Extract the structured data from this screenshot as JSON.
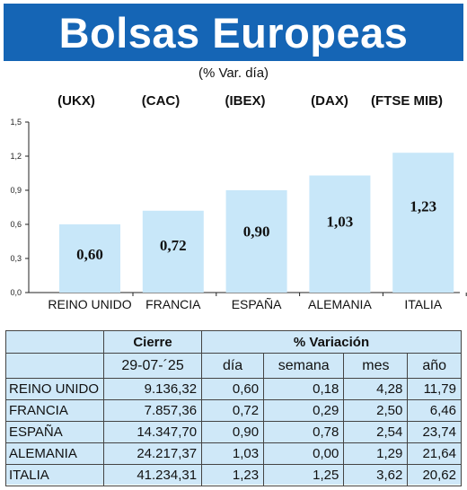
{
  "title": "Bolsas Europeas",
  "subtitle": "(% Var. día)",
  "indices": [
    "(UKX)",
    "(CAC)",
    "(IBEX)",
    "(DAX)",
    "(FTSE MIB)"
  ],
  "chart_data": {
    "type": "bar",
    "categories": [
      "REINO UNIDO",
      "FRANCIA",
      "ESPAÑA",
      "ALEMANIA",
      "ITALIA"
    ],
    "values": [
      0.6,
      0.72,
      0.9,
      1.03,
      1.23
    ],
    "value_labels": [
      "0,60",
      "0,72",
      "0,90",
      "1,03",
      "1,23"
    ],
    "yticks": [
      "0,0",
      "0,3",
      "0,6",
      "0,9",
      "1,2",
      "1,5"
    ],
    "ylim": [
      0,
      1.5
    ],
    "grid": false,
    "bar_color": "#c8e7f9"
  },
  "table": {
    "header_cierre": "Cierre",
    "header_variacion": "% Variación",
    "date": "29-07-´25",
    "cols": [
      "día",
      "semana",
      "mes",
      "año"
    ],
    "rows": [
      {
        "name": "REINO UNIDO",
        "cierre": "9.136,32",
        "dia": "0,60",
        "semana": "0,18",
        "mes": "4,28",
        "ano": "11,79"
      },
      {
        "name": "FRANCIA",
        "cierre": "7.857,36",
        "dia": "0,72",
        "semana": "0,29",
        "mes": "2,50",
        "ano": "6,46"
      },
      {
        "name": "ESPAÑA",
        "cierre": "14.347,70",
        "dia": "0,90",
        "semana": "0,78",
        "mes": "2,54",
        "ano": "23,74"
      },
      {
        "name": "ALEMANIA",
        "cierre": "24.217,37",
        "dia": "1,03",
        "semana": "0,00",
        "mes": "1,29",
        "ano": "21,64"
      },
      {
        "name": "ITALIA",
        "cierre": "41.234,31",
        "dia": "1,23",
        "semana": "1,25",
        "mes": "3,62",
        "ano": "20,62"
      }
    ]
  },
  "colors": {
    "banner": "#1565b5",
    "table_bg": "#cfe8f8"
  }
}
